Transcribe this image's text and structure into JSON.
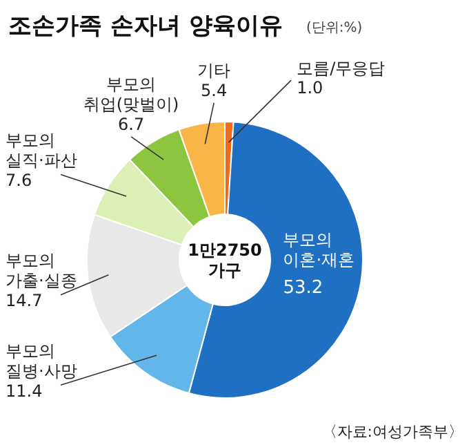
{
  "chart_data": {
    "type": "donut",
    "title": "조손가족 손자녀 양육이유",
    "subtitle": "(단위:%)",
    "categories": [
      "모름/무응답",
      "부모의 이혼·재혼",
      "부모의 질병·사망",
      "부모의 가출·실종",
      "부모의 실직·파산",
      "부모의 취업(맞벌이)",
      "기타"
    ],
    "values": [
      1.0,
      53.2,
      11.4,
      14.7,
      7.6,
      6.7,
      5.4
    ],
    "value_labels": [
      "1.0",
      "53.2",
      "11.4",
      "14.7",
      "7.6",
      "6.7",
      "5.4"
    ],
    "colors": [
      "#f26b1d",
      "#1f6fc2",
      "#63b6ea",
      "#e8e8e8",
      "#dcefb4",
      "#8cc63f",
      "#f9b545"
    ],
    "annotations": [
      "1만2750 가구",
      "〈자료:여성가족부〉"
    ]
  }
}
